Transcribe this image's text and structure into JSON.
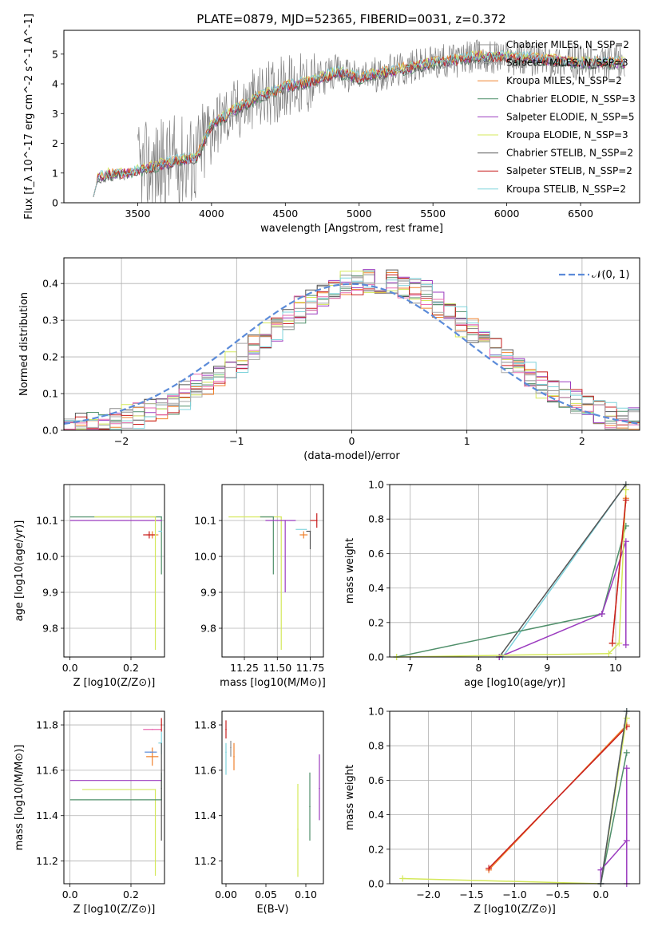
{
  "figure_title": "PLATE=0879, MJD=52365, FIBERID=0031, z=0.372",
  "colors": {
    "chabrier_miles": "#8c8c8c",
    "salpeter_miles": "#a8a8a8",
    "kroupa_miles": "#f0822e",
    "chabrier_elodie": "#4f8f6a",
    "salpeter_elodie": "#9b3bbf",
    "kroupa_elodie": "#d4e85a",
    "chabrier_stelib": "#555555",
    "salpeter_stelib": "#c81e1e",
    "kroupa_stelib": "#7fd3dc",
    "pink_hist": "#e86bb0",
    "normal_curve": "#5b8bd9",
    "grid": "#b0b0b0"
  },
  "chart_data": [
    {
      "type": "line",
      "title": "PLATE=0879, MJD=52365, FIBERID=0031, z=0.372",
      "xlabel": "wavelength [Angstrom, rest frame]",
      "ylabel": "Flux [f_λ 10^-17 erg cm^-2 s^-1 A^-1]",
      "xlim": [
        3000,
        6900
      ],
      "ylim": [
        0,
        5.8
      ],
      "xticks": [
        "3500",
        "4000",
        "4500",
        "5000",
        "5500",
        "6000",
        "6500"
      ],
      "yticks": [
        "0",
        "1",
        "2",
        "3",
        "4",
        "5"
      ],
      "grid": false,
      "legend_position": "upper-right",
      "legend": [
        "Chabrier MILES, N_SSP=2",
        "Salpeter MILES, N_SSP=3",
        "Kroupa MILES, N_SSP=2",
        "Chabrier ELODIE, N_SSP=3",
        "Salpeter ELODIE, N_SSP=5",
        "Kroupa ELODIE, N_SSP=3",
        "Chabrier STELIB, N_SSP=2",
        "Salpeter STELIB, N_SSP=2",
        "Kroupa STELIB, N_SSP=2"
      ],
      "data_spectrum_range": [
        3500,
        6800
      ],
      "model_spectrum_range": [
        3200,
        6800
      ],
      "continuum_anchor_points": [
        [
          3200,
          0.8
        ],
        [
          3300,
          0.95
        ],
        [
          3450,
          1.0
        ],
        [
          3600,
          1.2
        ],
        [
          3750,
          1.4
        ],
        [
          3900,
          1.5
        ],
        [
          4000,
          2.6
        ],
        [
          4150,
          3.1
        ],
        [
          4300,
          3.5
        ],
        [
          4500,
          3.9
        ],
        [
          4700,
          4.1
        ],
        [
          4850,
          4.4
        ],
        [
          5000,
          4.2
        ],
        [
          5200,
          4.4
        ],
        [
          5500,
          4.7
        ],
        [
          5800,
          4.9
        ],
        [
          6000,
          4.9
        ],
        [
          6300,
          4.8
        ],
        [
          6500,
          4.7
        ],
        [
          6800,
          4.7
        ]
      ]
    },
    {
      "type": "histogram",
      "xlabel": "(data-model)/error",
      "ylabel": "Normed distribution",
      "xlim": [
        -2.5,
        2.5
      ],
      "ylim": [
        0,
        0.47
      ],
      "xticks": [
        "−2",
        "−1",
        "0",
        "1",
        "2"
      ],
      "yticks": [
        "0.0",
        "0.1",
        "0.2",
        "0.3",
        "0.4"
      ],
      "grid": true,
      "legend_position": "upper-right",
      "legend": [
        "𝒩(0, 1)"
      ],
      "bin_edges_range": [
        -2.5,
        2.5
      ],
      "bin_width": 0.1,
      "series_shape": "approx N(0.15, 0.95) with bin noise, 10 series"
    },
    {
      "type": "scatter",
      "xlabel": "Z [log10(Z/Z⊙)]",
      "ylabel": "age  [log10(age/yr)]",
      "xlim": [
        -0.02,
        0.31
      ],
      "ylim": [
        9.72,
        10.2
      ],
      "xticks": [
        "0.0",
        "0.2"
      ],
      "yticks": [
        "9.8",
        "9.9",
        "10.0",
        "10.1"
      ],
      "grid": true,
      "points": [
        {
          "model": "Kroupa MILES",
          "x": 0.27,
          "y": 10.06,
          "xerr": [
            0.02,
            0.02
          ],
          "yerr": [
            0.01,
            0.01
          ]
        },
        {
          "model": "Salpeter STELIB",
          "x": 0.26,
          "y": 10.06,
          "xerr": [
            0.02,
            0.02
          ],
          "yerr": [
            0.01,
            0.01
          ]
        },
        {
          "model": "Chabrier ELODIE",
          "x": 0.3,
          "y": 10.11,
          "xerr": [
            0.3,
            0.0
          ],
          "yerr": [
            0.16,
            0.0
          ]
        },
        {
          "model": "Salpeter ELODIE",
          "x": 0.3,
          "y": 10.1,
          "xerr": [
            0.3,
            0.0
          ],
          "yerr": [
            0.0,
            0.0
          ]
        },
        {
          "model": "Kroupa ELODIE",
          "x": 0.28,
          "y": 10.11,
          "xerr": [
            0.2,
            0.0
          ],
          "yerr": [
            0.37,
            0.0
          ]
        },
        {
          "model": "Kroupa STELIB",
          "x": 0.3,
          "y": 10.07,
          "xerr": [
            0.01,
            0.0
          ],
          "yerr": [
            0.0,
            0.0
          ]
        }
      ]
    },
    {
      "type": "scatter",
      "xlabel": "mass [log10(M/M⊙)]",
      "ylabel": "",
      "xlim": [
        11.08,
        11.85
      ],
      "ylim": [
        9.72,
        10.2
      ],
      "xticks": [
        "11.25",
        "11.50",
        "11.75"
      ],
      "yticks": [
        "9.8",
        "9.9",
        "10.0",
        "10.1"
      ],
      "grid": true,
      "points": [
        {
          "model": "Kroupa ELODIE",
          "x": 11.53,
          "y": 10.11,
          "xerr": [
            0.4,
            0.0
          ],
          "yerr": [
            0.37,
            0.0
          ]
        },
        {
          "model": "Chabrier ELODIE",
          "x": 11.47,
          "y": 10.11,
          "xerr": [
            0.1,
            0.0
          ],
          "yerr": [
            0.16,
            0.0
          ]
        },
        {
          "model": "Salpeter ELODIE",
          "x": 11.56,
          "y": 10.1,
          "xerr": [
            0.15,
            0.08
          ],
          "yerr": [
            0.2,
            0.0
          ]
        },
        {
          "model": "Kroupa MILES",
          "x": 11.7,
          "y": 10.06,
          "xerr": [
            0.03,
            0.03
          ],
          "yerr": [
            0.01,
            0.01
          ]
        },
        {
          "model": "Salpeter STELIB",
          "x": 11.8,
          "y": 10.1,
          "xerr": [
            0.05,
            0.0
          ],
          "yerr": [
            0.02,
            0.02
          ]
        },
        {
          "model": "Chabrier STELIB",
          "x": 11.75,
          "y": 10.07,
          "xerr": [
            0.03,
            0.0
          ],
          "yerr": [
            0.05,
            0.0
          ]
        },
        {
          "model": "Kroupa STELIB",
          "x": 11.72,
          "y": 10.075,
          "xerr": [
            0.08,
            0.0
          ],
          "yerr": [
            0.0,
            0.0
          ]
        }
      ]
    },
    {
      "type": "line",
      "xlabel": "age  [log10(age/yr)]",
      "ylabel": "mass weight",
      "xlim": [
        6.7,
        10.35
      ],
      "ylim": [
        0,
        1
      ],
      "xticks": [
        "7",
        "8",
        "9",
        "10"
      ],
      "yticks": [
        "0.0",
        "0.2",
        "0.4",
        "0.6",
        "0.8",
        "1.0"
      ],
      "grid": true,
      "series": [
        {
          "name": "Kroupa STELIB",
          "x": [
            8.35,
            10.15
          ],
          "y": [
            0.0,
            1.0
          ]
        },
        {
          "name": "Chabrier STELIB",
          "x": [
            8.3,
            10.15
          ],
          "y": [
            0.0,
            1.0
          ]
        },
        {
          "name": "Chabrier ELODIE",
          "x": [
            6.8,
            9.8,
            10.15
          ],
          "y": [
            0.0,
            0.25,
            0.76
          ]
        },
        {
          "name": "Salpeter ELODIE",
          "x": [
            8.3,
            9.8,
            10.15,
            10.15
          ],
          "y": [
            0.0,
            0.25,
            0.67,
            0.07
          ]
        },
        {
          "name": "Kroupa ELODIE",
          "x": [
            6.8,
            9.9,
            10.05,
            10.15
          ],
          "y": [
            0.0,
            0.02,
            0.08,
            0.97
          ]
        },
        {
          "name": "Kroupa MILES",
          "x": [
            9.95,
            10.15
          ],
          "y": [
            0.08,
            0.92
          ]
        },
        {
          "name": "Salpeter STELIB",
          "x": [
            9.95,
            10.15
          ],
          "y": [
            0.08,
            0.91
          ]
        }
      ]
    },
    {
      "type": "scatter",
      "xlabel": "Z [log10(Z/Z⊙)]",
      "ylabel": "mass [log10(M/M⊙)]",
      "xlim": [
        -0.02,
        0.31
      ],
      "ylim": [
        11.1,
        11.86
      ],
      "xticks": [
        "0.0",
        "0.2"
      ],
      "yticks": [
        "11.2",
        "11.4",
        "11.6",
        "11.8"
      ],
      "grid": true,
      "points": [
        {
          "model": "Salpeter ELODIE",
          "x": 0.3,
          "y": 11.555,
          "xerr": [
            0.3,
            0.0
          ],
          "yerr": [
            0.0,
            0.0
          ]
        },
        {
          "model": "Kroupa ELODIE",
          "x": 0.28,
          "y": 11.515,
          "xerr": [
            0.24,
            0.0
          ],
          "yerr": [
            0.38,
            0.0
          ]
        },
        {
          "model": "Chabrier ELODIE",
          "x": 0.3,
          "y": 11.47,
          "xerr": [
            0.3,
            0.0
          ],
          "yerr": [
            0.0,
            0.12
          ]
        },
        {
          "model": "Kroupa MILES",
          "x": 0.27,
          "y": 11.66,
          "xerr": [
            0.02,
            0.02
          ],
          "yerr": [
            0.04,
            0.04
          ]
        },
        {
          "model": "Pink series",
          "x": 0.27,
          "y": 11.78,
          "xerr": [
            0.03,
            0.03
          ],
          "yerr": [
            0.0,
            0.0
          ]
        },
        {
          "model": "Salpeter STELIB",
          "x": 0.3,
          "y": 11.8,
          "xerr": [
            0.0,
            0.0
          ],
          "yerr": [
            0.03,
            0.03
          ]
        },
        {
          "model": "Kroupa STELIB",
          "x": 0.3,
          "y": 11.72,
          "xerr": [
            0.01,
            0.0
          ],
          "yerr": [
            0.05,
            0.05
          ]
        },
        {
          "model": "Chabrier STELIB",
          "x": 0.3,
          "y": 11.52,
          "xerr": [
            0.0,
            0.0
          ],
          "yerr": [
            0.23,
            0.2
          ]
        },
        {
          "model": "Blue series",
          "x": 0.265,
          "y": 11.68,
          "xerr": [
            0.02,
            0.02
          ],
          "yerr": [
            0.0,
            0.0
          ]
        }
      ]
    },
    {
      "type": "scatter",
      "xlabel": "E(B-V)",
      "ylabel": "",
      "xlim": [
        -0.005,
        0.122
      ],
      "ylim": [
        11.1,
        11.86
      ],
      "xticks": [
        "0.00",
        "0.05",
        "0.10"
      ],
      "yticks": [
        "11.2",
        "11.4",
        "11.6",
        "11.8"
      ],
      "grid": false,
      "points": [
        {
          "model": "Salpeter STELIB",
          "x": 0.0,
          "y": 11.78,
          "xerr": [
            0,
            0
          ],
          "yerr": [
            0.04,
            0.04
          ]
        },
        {
          "model": "Kroupa MILES",
          "x": 0.01,
          "y": 11.66,
          "xerr": [
            0,
            0
          ],
          "yerr": [
            0.06,
            0.06
          ]
        },
        {
          "model": "Kroupa STELIB",
          "x": 0.0,
          "y": 11.68,
          "xerr": [
            0,
            0
          ],
          "yerr": [
            0.1,
            0.04
          ]
        },
        {
          "model": "Chabrier MILES",
          "x": 0.006,
          "y": 11.7,
          "xerr": [
            0,
            0
          ],
          "yerr": [
            0.04,
            0.03
          ]
        },
        {
          "model": "Kroupa ELODIE",
          "x": 0.09,
          "y": 11.34,
          "xerr": [
            0,
            0
          ],
          "yerr": [
            0.21,
            0.2
          ]
        },
        {
          "model": "Chabrier ELODIE",
          "x": 0.105,
          "y": 11.44,
          "xerr": [
            0,
            0
          ],
          "yerr": [
            0.15,
            0.15
          ]
        },
        {
          "model": "Salpeter ELODIE",
          "x": 0.117,
          "y": 11.52,
          "xerr": [
            0,
            0
          ],
          "yerr": [
            0.14,
            0.15
          ]
        }
      ]
    },
    {
      "type": "line",
      "xlabel": "Z [log10(Z/Z⊙)]",
      "ylabel": "mass weight",
      "xlim": [
        -2.45,
        0.45
      ],
      "ylim": [
        0,
        1
      ],
      "xticks": [
        "−2.0",
        "−1.5",
        "−1.0",
        "−0.5",
        "0.0"
      ],
      "yticks": [
        "0.0",
        "0.2",
        "0.4",
        "0.6",
        "0.8",
        "1.0"
      ],
      "grid": true,
      "series": [
        {
          "name": "Kroupa MILES",
          "x": [
            -1.3,
            0.3
          ],
          "y": [
            0.08,
            0.92
          ]
        },
        {
          "name": "Salpeter STELIB",
          "x": [
            -1.3,
            0.3
          ],
          "y": [
            0.09,
            0.91
          ]
        },
        {
          "name": "Kroupa ELODIE",
          "x": [
            -2.3,
            0.0,
            0.3
          ],
          "y": [
            0.03,
            0.0,
            0.96
          ]
        },
        {
          "name": "Chabrier ELODIE",
          "x": [
            0.0,
            0.3
          ],
          "y": [
            0.0,
            0.76
          ]
        },
        {
          "name": "Salpeter ELODIE",
          "x": [
            0.0,
            0.0,
            0.3,
            0.3,
            0.3
          ],
          "y": [
            0.0,
            0.08,
            0.25,
            0.67,
            0.0
          ]
        },
        {
          "name": "Kroupa STELIB",
          "x": [
            0.0,
            0.3
          ],
          "y": [
            0.0,
            1.0
          ]
        },
        {
          "name": "Chabrier STELIB",
          "x": [
            0.0,
            0.3
          ],
          "y": [
            0.0,
            1.0
          ]
        }
      ]
    }
  ]
}
